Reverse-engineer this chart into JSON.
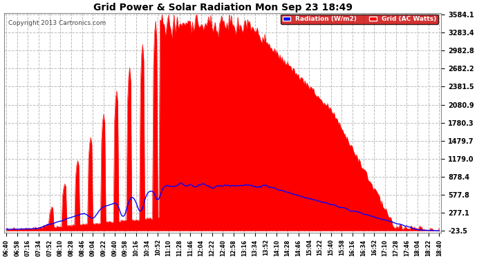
{
  "title": "Grid Power & Solar Radiation Mon Sep 23 18:49",
  "copyright": "Copyright 2013 Cartronics.com",
  "legend_radiation": "Radiation (W/m2)",
  "legend_grid": "Grid (AC Watts)",
  "yticks": [
    3584.1,
    3283.4,
    2982.8,
    2682.2,
    2381.5,
    2080.9,
    1780.3,
    1479.7,
    1179.0,
    878.4,
    577.8,
    277.1,
    -23.5
  ],
  "ymin": -23.5,
  "ymax": 3584.1,
  "background_color": "#ffffff",
  "plot_bg_color": "#ffffff",
  "grid_color": "#bbbbbb",
  "red_fill_color": "#ff0000",
  "blue_line_color": "#0000ff",
  "title_color": "#000000",
  "time_labels": [
    "06:40",
    "06:58",
    "07:16",
    "07:34",
    "07:52",
    "08:10",
    "08:28",
    "08:46",
    "09:04",
    "09:22",
    "09:40",
    "09:58",
    "10:16",
    "10:34",
    "10:52",
    "11:10",
    "11:28",
    "11:46",
    "12:04",
    "12:22",
    "12:40",
    "12:58",
    "13:16",
    "13:34",
    "13:52",
    "14:10",
    "14:28",
    "14:46",
    "15:04",
    "15:22",
    "15:40",
    "15:58",
    "16:16",
    "16:34",
    "16:52",
    "17:10",
    "17:28",
    "17:46",
    "18:04",
    "18:22",
    "18:40"
  ]
}
